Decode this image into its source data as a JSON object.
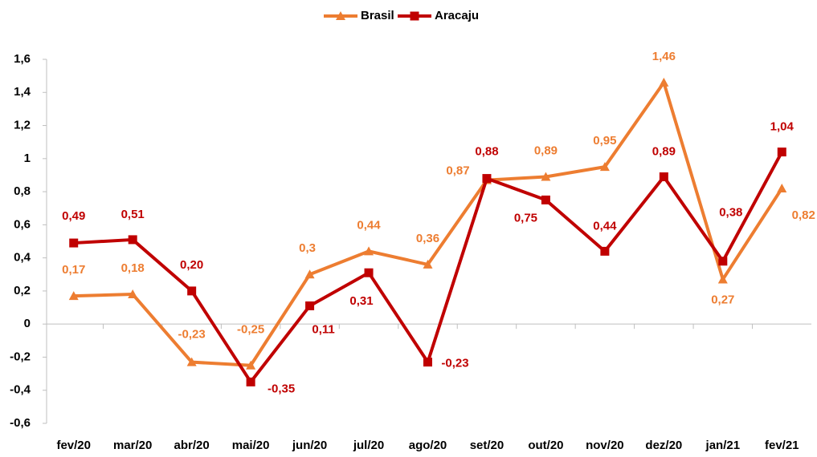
{
  "chart_data": {
    "type": "line",
    "categories": [
      "fev/20",
      "mar/20",
      "abr/20",
      "mai/20",
      "jun/20",
      "jul/20",
      "ago/20",
      "set/20",
      "out/20",
      "nov/20",
      "dez/20",
      "jan/21",
      "fev/21"
    ],
    "series": [
      {
        "name": "Brasil",
        "color": "#ED7D31",
        "marker": "triangle",
        "values": [
          0.17,
          0.18,
          -0.23,
          -0.25,
          0.3,
          0.44,
          0.36,
          0.87,
          0.89,
          0.95,
          1.46,
          0.27,
          0.82
        ],
        "value_labels": [
          "0,17",
          "0,18",
          "-0,23",
          "-0,25",
          "0,3",
          "0,44",
          "0,36",
          "0,87",
          "0,89",
          "0,95",
          "1,46",
          "0,27",
          "0,82"
        ]
      },
      {
        "name": "Aracaju",
        "color": "#C00000",
        "marker": "square",
        "values": [
          0.49,
          0.51,
          0.2,
          -0.35,
          0.11,
          0.31,
          -0.23,
          0.88,
          0.75,
          0.44,
          0.89,
          0.38,
          1.04
        ],
        "value_labels": [
          "0,49",
          "0,51",
          "0,20",
          "-0,35",
          "0,11",
          "0,31",
          "-0,23",
          "0,88",
          "0,75",
          "0,44",
          "0,89",
          "0,38",
          "1,04"
        ]
      }
    ],
    "ylim": [
      -0.6,
      1.6
    ],
    "yticks": [
      {
        "value": -0.6,
        "label": "-0,6"
      },
      {
        "value": -0.4,
        "label": "-0,4"
      },
      {
        "value": -0.2,
        "label": "-0,2"
      },
      0,
      {
        "value": 0.2,
        "label": "0,2"
      },
      {
        "value": 0.4,
        "label": "0,4"
      },
      {
        "value": 0.6,
        "label": "0,6"
      },
      {
        "value": 0.8,
        "label": "0,8"
      },
      1,
      {
        "value": 1.2,
        "label": "1,2"
      },
      {
        "value": 1.4,
        "label": "1,4"
      },
      {
        "value": 1.6,
        "label": "1,6"
      }
    ],
    "grid": false,
    "legend": "top"
  }
}
